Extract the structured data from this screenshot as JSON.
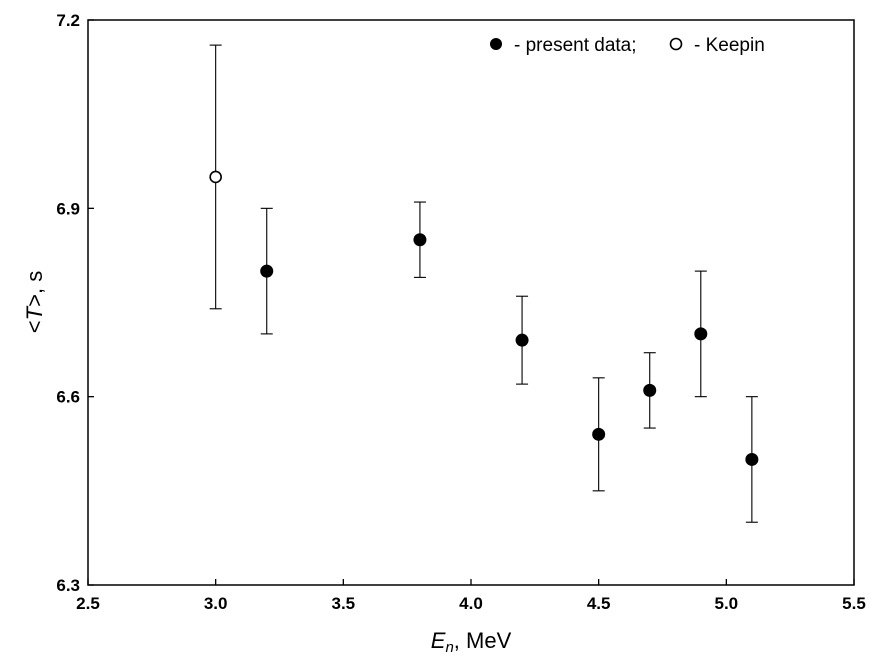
{
  "chart_data": {
    "type": "scatter",
    "xlabel": {
      "var": "E",
      "sub": "n",
      "rest": ", MeV"
    },
    "ylabel": {
      "pre": "<",
      "var": "T",
      "post": ">, s"
    },
    "xlim": [
      2.5,
      5.5
    ],
    "ylim": [
      6.3,
      7.2
    ],
    "xticks": [
      "2.5",
      "3.0",
      "3.5",
      "4.0",
      "4.5",
      "5.0",
      "5.5"
    ],
    "yticks": [
      "6.3",
      "6.6",
      "6.9",
      "7.2"
    ],
    "grid": false,
    "legend_position": "top-right",
    "series": [
      {
        "name": "- present data;",
        "marker": "filled-circle",
        "points": [
          {
            "x": 3.2,
            "y": 6.8,
            "yerr_low": 6.7,
            "yerr_high": 6.9
          },
          {
            "x": 3.8,
            "y": 6.85,
            "yerr_low": 6.79,
            "yerr_high": 6.91
          },
          {
            "x": 4.2,
            "y": 6.69,
            "yerr_low": 6.62,
            "yerr_high": 6.76
          },
          {
            "x": 4.5,
            "y": 6.54,
            "yerr_low": 6.45,
            "yerr_high": 6.63
          },
          {
            "x": 4.7,
            "y": 6.61,
            "yerr_low": 6.55,
            "yerr_high": 6.67
          },
          {
            "x": 4.9,
            "y": 6.7,
            "yerr_low": 6.6,
            "yerr_high": 6.8
          },
          {
            "x": 5.1,
            "y": 6.5,
            "yerr_low": 6.4,
            "yerr_high": 6.6
          }
        ]
      },
      {
        "name": "- Keepin",
        "marker": "open-circle",
        "points": [
          {
            "x": 3.0,
            "y": 6.95,
            "yerr_low": 6.74,
            "yerr_high": 7.16
          }
        ]
      }
    ],
    "colors": {
      "marker": "#000000",
      "axes": "#000000",
      "background": "#ffffff"
    }
  }
}
